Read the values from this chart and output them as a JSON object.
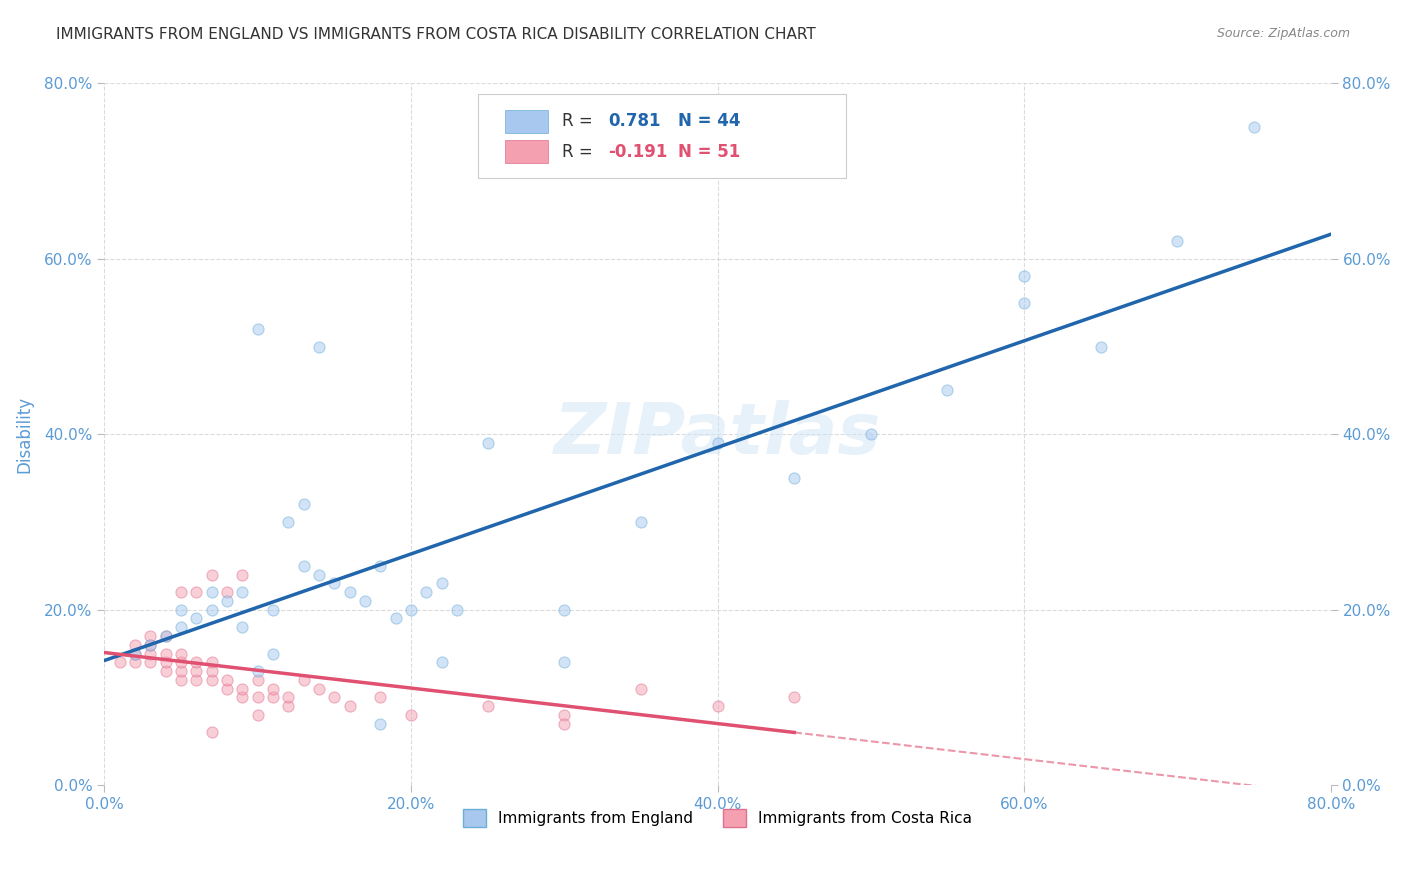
{
  "title": "IMMIGRANTS FROM ENGLAND VS IMMIGRANTS FROM COSTA RICA DISABILITY CORRELATION CHART",
  "source": "Source: ZipAtlas.com",
  "ylabel": "Disability",
  "xlim": [
    0.0,
    0.8
  ],
  "ylim": [
    0.0,
    0.8
  ],
  "xticks": [
    0.0,
    0.2,
    0.4,
    0.6,
    0.8
  ],
  "yticks": [
    0.0,
    0.2,
    0.4,
    0.6,
    0.8
  ],
  "xtick_labels": [
    "0.0%",
    "20.0%",
    "40.0%",
    "60.0%",
    "80.0%"
  ],
  "ytick_labels": [
    "0.0%",
    "20.0%",
    "40.0%",
    "60.0%",
    "80.0%"
  ],
  "england_color": "#a8c8f0",
  "england_edge_color": "#6baed6",
  "england_line_color": "#2166ac",
  "costa_rica_color": "#f4a0b0",
  "costa_rica_edge_color": "#e07090",
  "costa_rica_line_color": "#e05070",
  "england_R": 0.781,
  "england_N": 44,
  "costa_rica_R": -0.191,
  "costa_rica_N": 51,
  "background_color": "#ffffff",
  "grid_color": "#cccccc",
  "watermark_text": "ZIPatlas",
  "england_x": [
    0.02,
    0.03,
    0.04,
    0.05,
    0.06,
    0.07,
    0.08,
    0.09,
    0.1,
    0.11,
    0.12,
    0.13,
    0.14,
    0.15,
    0.16,
    0.17,
    0.18,
    0.19,
    0.2,
    0.21,
    0.22,
    0.23,
    0.05,
    0.07,
    0.09,
    0.11,
    0.13,
    0.25,
    0.3,
    0.35,
    0.4,
    0.45,
    0.5,
    0.55,
    0.6,
    0.65,
    0.7,
    0.75,
    0.6,
    0.1,
    0.14,
    0.18,
    0.22,
    0.3
  ],
  "england_y": [
    0.15,
    0.16,
    0.17,
    0.18,
    0.19,
    0.2,
    0.21,
    0.22,
    0.13,
    0.15,
    0.3,
    0.25,
    0.24,
    0.23,
    0.22,
    0.21,
    0.25,
    0.19,
    0.2,
    0.22,
    0.23,
    0.2,
    0.2,
    0.22,
    0.18,
    0.2,
    0.32,
    0.39,
    0.2,
    0.3,
    0.39,
    0.35,
    0.4,
    0.45,
    0.55,
    0.5,
    0.62,
    0.75,
    0.58,
    0.52,
    0.5,
    0.07,
    0.14,
    0.14
  ],
  "costa_rica_x": [
    0.01,
    0.02,
    0.02,
    0.02,
    0.03,
    0.03,
    0.03,
    0.03,
    0.04,
    0.04,
    0.04,
    0.04,
    0.05,
    0.05,
    0.05,
    0.05,
    0.05,
    0.06,
    0.06,
    0.06,
    0.06,
    0.07,
    0.07,
    0.07,
    0.07,
    0.08,
    0.08,
    0.08,
    0.09,
    0.09,
    0.09,
    0.1,
    0.1,
    0.11,
    0.11,
    0.12,
    0.12,
    0.13,
    0.14,
    0.15,
    0.16,
    0.18,
    0.2,
    0.25,
    0.3,
    0.35,
    0.4,
    0.45,
    0.3,
    0.07,
    0.1
  ],
  "costa_rica_y": [
    0.14,
    0.14,
    0.15,
    0.16,
    0.14,
    0.15,
    0.16,
    0.17,
    0.13,
    0.14,
    0.15,
    0.17,
    0.12,
    0.13,
    0.14,
    0.15,
    0.22,
    0.12,
    0.13,
    0.14,
    0.22,
    0.12,
    0.13,
    0.14,
    0.24,
    0.11,
    0.12,
    0.22,
    0.1,
    0.11,
    0.24,
    0.1,
    0.12,
    0.1,
    0.11,
    0.09,
    0.1,
    0.12,
    0.11,
    0.1,
    0.09,
    0.1,
    0.08,
    0.09,
    0.08,
    0.11,
    0.09,
    0.1,
    0.07,
    0.06,
    0.08
  ],
  "title_fontsize": 11,
  "tick_label_color": "#5b9bd5",
  "marker_size": 8,
  "marker_alpha": 0.5
}
